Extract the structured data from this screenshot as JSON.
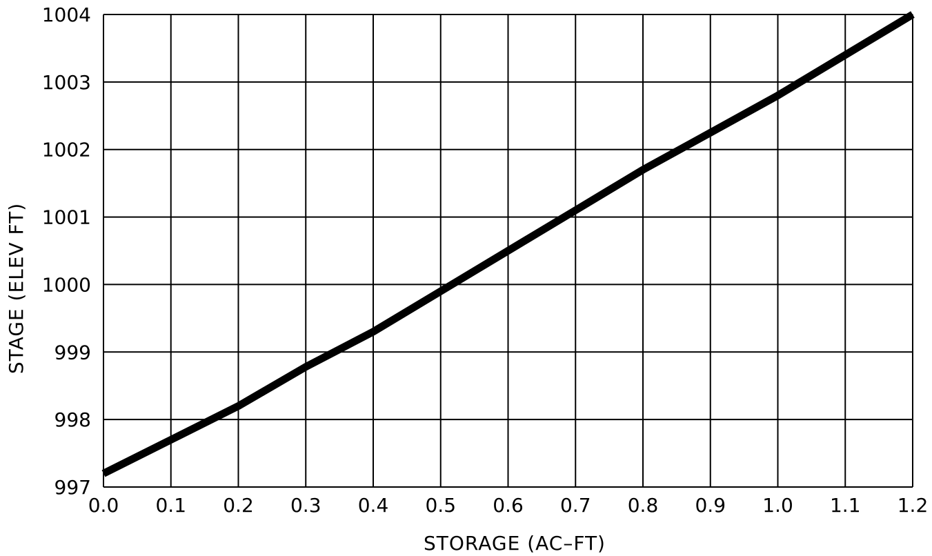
{
  "chart_data": {
    "type": "line",
    "title": "",
    "xlabel": "STORAGE (AC–FT)",
    "ylabel": "STAGE (ELEV FT)",
    "xlim": [
      0.0,
      1.2
    ],
    "ylim": [
      997,
      1004
    ],
    "x_ticks": [
      "0.0",
      "0.1",
      "0.2",
      "0.3",
      "0.4",
      "0.5",
      "0.6",
      "0.7",
      "0.8",
      "0.9",
      "1.0",
      "1.1",
      "1.2"
    ],
    "y_ticks": [
      "997",
      "998",
      "999",
      "1000",
      "1001",
      "1002",
      "1003",
      "1004"
    ],
    "grid": true,
    "legend": "none",
    "line_color": "#000000",
    "series": [
      {
        "x": [
          0.0,
          0.1,
          0.2,
          0.3,
          0.4,
          0.5,
          0.6,
          0.7,
          0.8,
          0.9,
          1.0,
          1.1,
          1.2
        ],
        "values": [
          997.2,
          997.7,
          998.2,
          998.78,
          999.3,
          999.9,
          1000.5,
          1001.1,
          1001.7,
          1002.25,
          1002.8,
          1003.4,
          1004.0
        ]
      }
    ]
  }
}
